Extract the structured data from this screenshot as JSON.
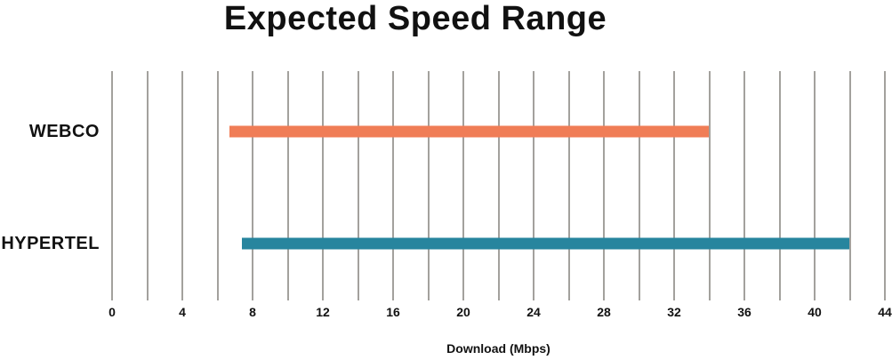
{
  "title": "Expected Speed Range",
  "chart_data": {
    "type": "bar",
    "orientation": "horizontal",
    "variant": "range-bar",
    "title": "Expected Speed Range",
    "xlabel": "Download (Mbps)",
    "ylabel": "",
    "xlim": [
      0,
      44
    ],
    "x_ticks": [
      0,
      4,
      8,
      12,
      16,
      20,
      24,
      28,
      32,
      36,
      40,
      44
    ],
    "gridline_values": [
      0,
      2,
      4,
      6,
      8,
      10,
      12,
      14,
      16,
      18,
      20,
      22,
      24,
      26,
      28,
      30,
      32,
      34,
      36,
      38,
      40,
      42,
      44
    ],
    "grid": "vertical-only",
    "legend_position": "none",
    "categories": [
      "WEBCO",
      "HYPERTEL"
    ],
    "series": [
      {
        "name": "WEBCO",
        "range_min": 6.7,
        "range_max": 34,
        "color": "#F07D56"
      },
      {
        "name": "HYPERTEL",
        "range_min": 7.4,
        "range_max": 42,
        "color": "#27859E"
      }
    ]
  },
  "colors": {
    "background": "#FFFFFF",
    "gridline": "#A3A19D",
    "text": "#111111",
    "webco_bar": "#F07D56",
    "hypertel_bar": "#27859E"
  }
}
